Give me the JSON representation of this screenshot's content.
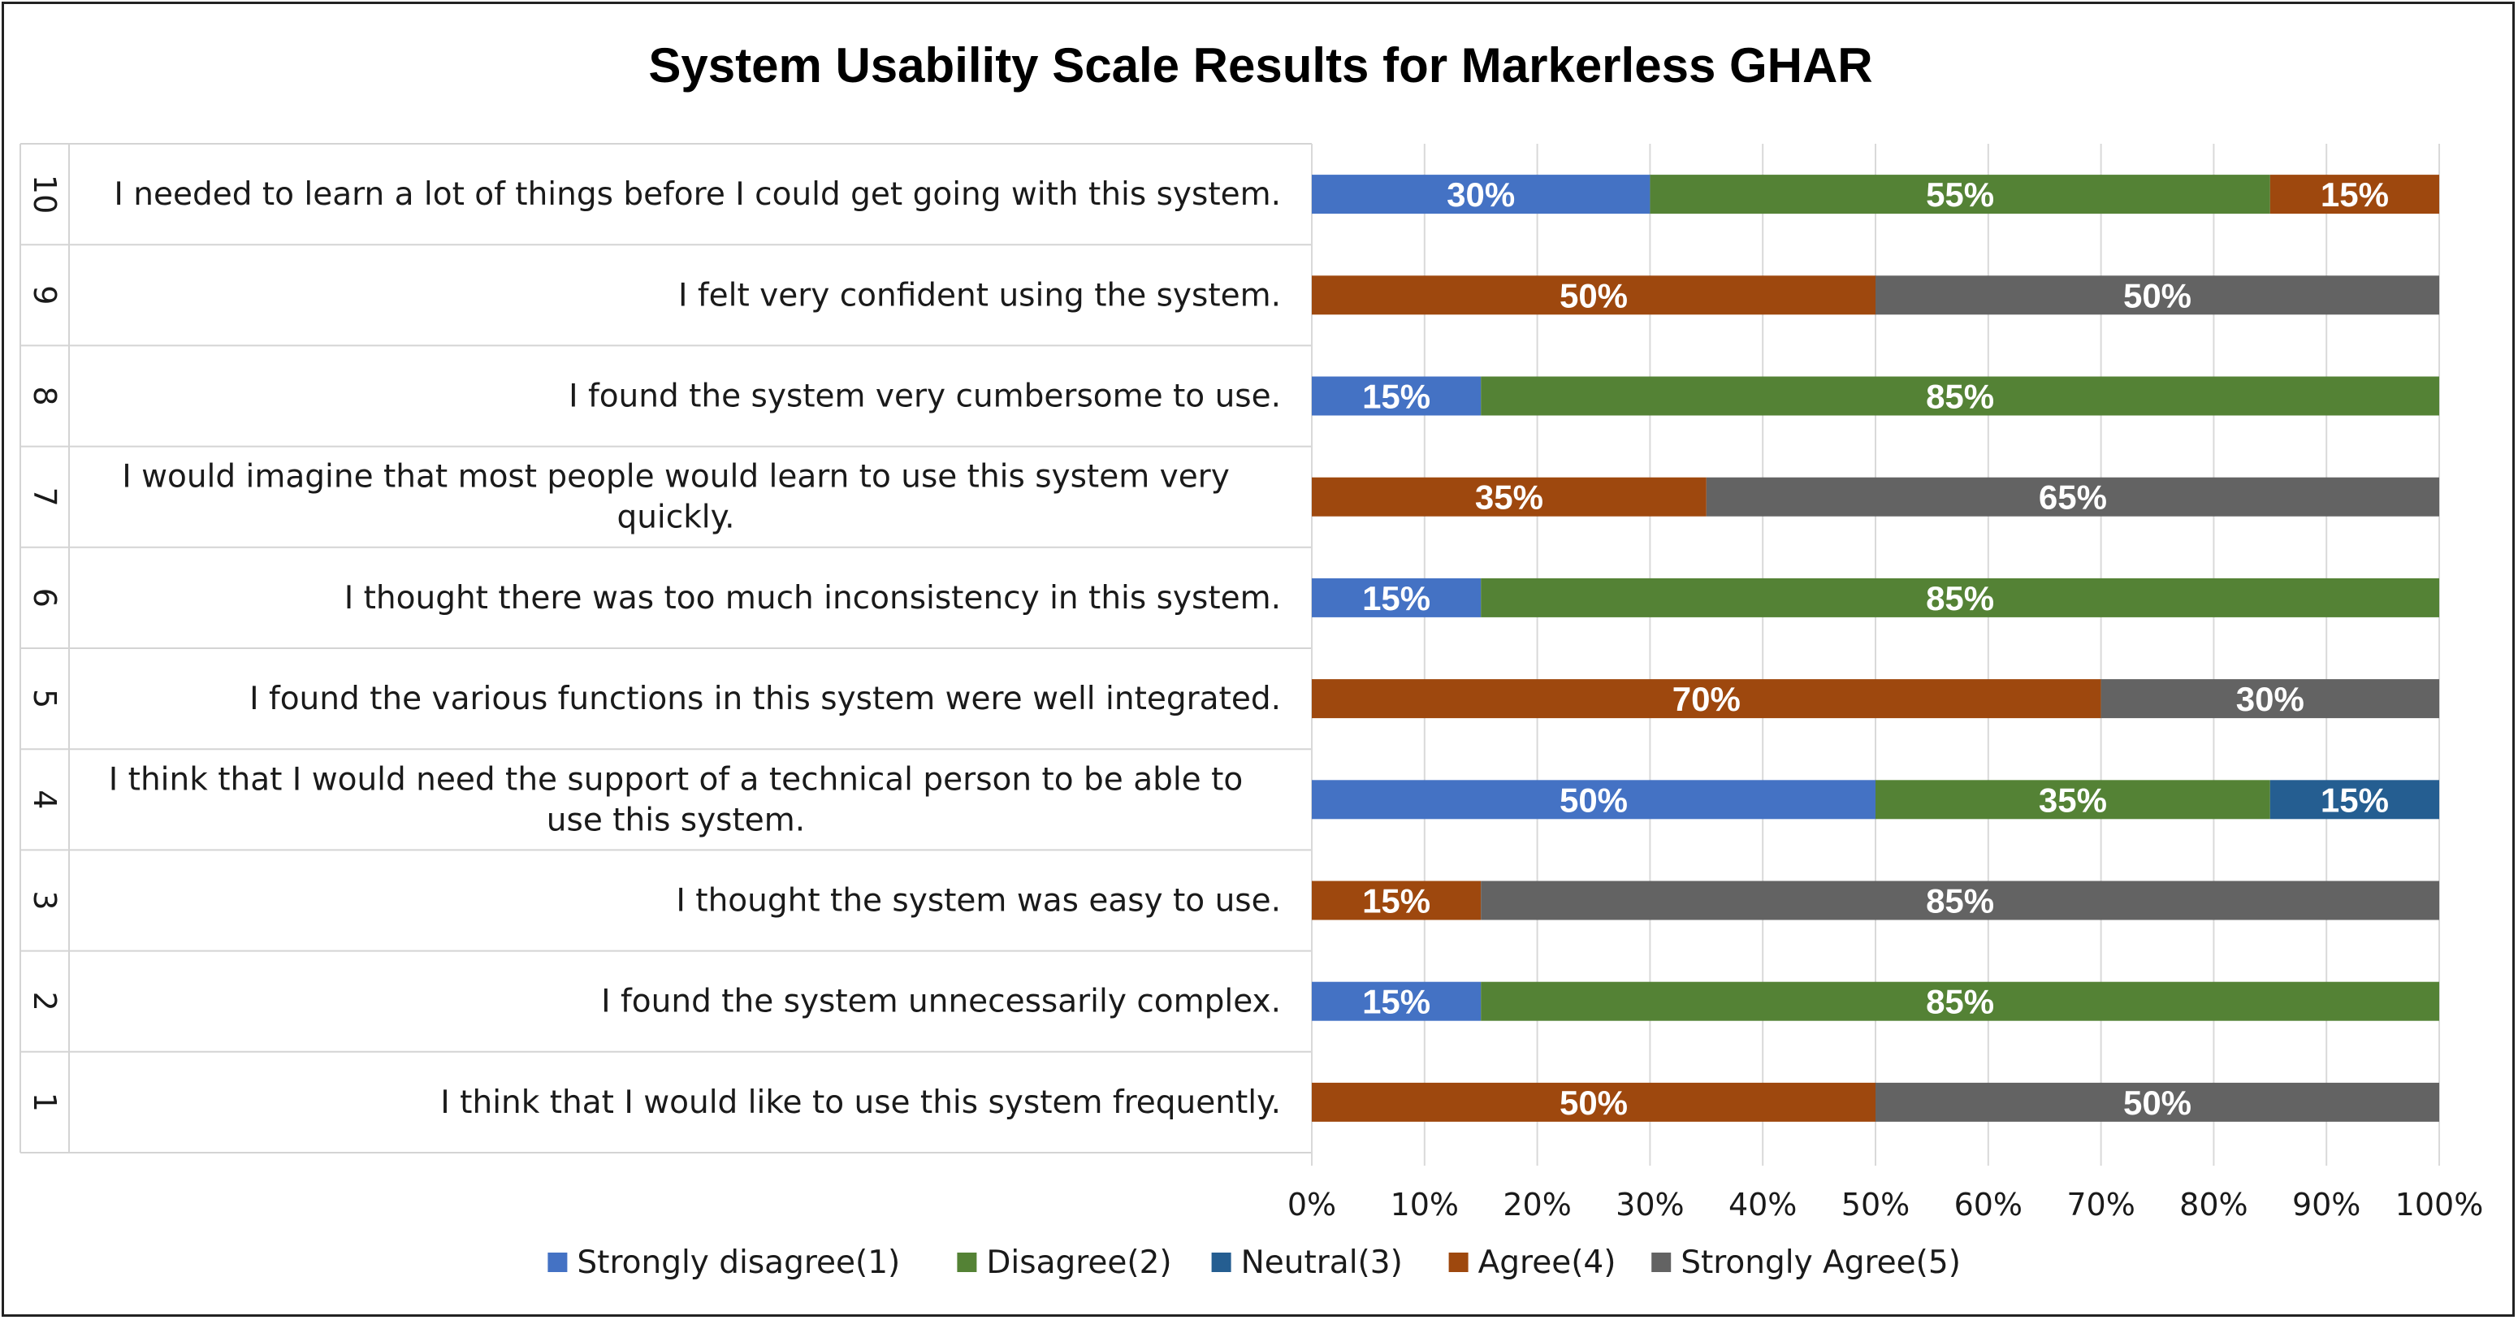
{
  "chart_data": {
    "type": "bar",
    "orientation": "horizontal-stacked-percent",
    "title": "System Usability Scale Results for Markerless GHAR",
    "xlim": [
      0,
      100
    ],
    "x_ticks": [
      "0%",
      "10%",
      "20%",
      "30%",
      "40%",
      "50%",
      "60%",
      "70%",
      "80%",
      "90%",
      "100%"
    ],
    "grid": true,
    "legend_position": "bottom",
    "categories": [
      {
        "num": "10",
        "lines": [
          "I needed to learn a lot of things before I could get going with this system."
        ]
      },
      {
        "num": "9",
        "lines": [
          "I felt very confident using the system."
        ]
      },
      {
        "num": "8",
        "lines": [
          "I found the system very cumbersome to use."
        ]
      },
      {
        "num": "7",
        "lines": [
          "I would imagine that most people would learn to use this system very",
          "quickly."
        ]
      },
      {
        "num": "6",
        "lines": [
          "I thought there was too much inconsistency in this system."
        ]
      },
      {
        "num": "5",
        "lines": [
          "I found the various functions in this system were well integrated."
        ]
      },
      {
        "num": "4",
        "lines": [
          "I think that I would need the support of a technical person to be  able to",
          "use this system."
        ]
      },
      {
        "num": "3",
        "lines": [
          "I thought the system was easy to use."
        ]
      },
      {
        "num": "2",
        "lines": [
          "I found the system unnecessarily complex."
        ]
      },
      {
        "num": "1",
        "lines": [
          "I think that I would like to use this system frequently."
        ]
      }
    ],
    "series": [
      {
        "name": "Strongly disagree(1)",
        "color": "#4472C4",
        "values": [
          30,
          0,
          15,
          0,
          15,
          0,
          50,
          0,
          15,
          0
        ]
      },
      {
        "name": "Disagree(2)",
        "color": "#548235",
        "values": [
          55,
          0,
          85,
          0,
          85,
          0,
          35,
          0,
          85,
          0
        ]
      },
      {
        "name": "Neutral(3)",
        "color": "#255E91",
        "values": [
          0,
          0,
          0,
          0,
          0,
          0,
          15,
          0,
          0,
          0
        ]
      },
      {
        "name": "Agree(4)",
        "color": "#9E480E",
        "values": [
          15,
          50,
          0,
          35,
          0,
          70,
          0,
          15,
          0,
          50
        ]
      },
      {
        "name": "Strongly Agree(5)",
        "color": "#636363",
        "values": [
          0,
          50,
          0,
          65,
          0,
          30,
          0,
          85,
          0,
          50
        ]
      }
    ]
  }
}
